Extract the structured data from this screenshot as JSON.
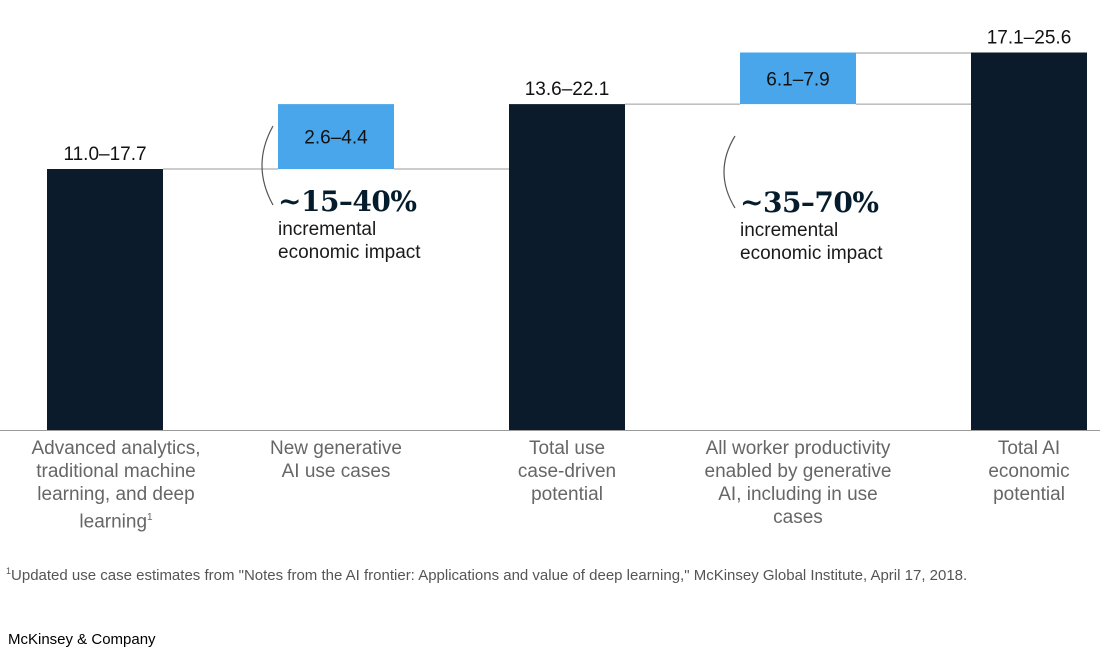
{
  "chart_data": {
    "type": "bar",
    "subtype": "waterfall",
    "colors": {
      "total": "#0b1b2b",
      "increment": "#4aa6ea"
    },
    "categories": [
      "Advanced analytics, traditional machine learning, and deep learning",
      "New generative AI use cases",
      "Total use case-driven potential",
      "All worker productivity enabled by generative AI, including in use cases",
      "Total AI economic potential"
    ],
    "bars": [
      {
        "kind": "total",
        "low": 11.0,
        "high": 17.7,
        "label": "11.0–17.7"
      },
      {
        "kind": "increment",
        "low": 2.6,
        "high": 4.4,
        "label": "2.6–4.4"
      },
      {
        "kind": "total",
        "low": 13.6,
        "high": 22.1,
        "label": "13.6–22.1"
      },
      {
        "kind": "increment",
        "low": 6.1,
        "high": 7.9,
        "label": "6.1–7.9"
      },
      {
        "kind": "total",
        "low": 17.1,
        "high": 25.6,
        "label": "17.1–25.6"
      }
    ]
  },
  "category_labels": [
    {
      "lines": [
        "Advanced analytics,",
        "traditional machine",
        "learning, and deep",
        "learning"
      ],
      "sup": "1"
    },
    {
      "lines": [
        "New generative",
        "AI use cases"
      ]
    },
    {
      "lines": [
        "Total use",
        "case-driven",
        "potential"
      ]
    },
    {
      "lines": [
        "All worker productivity",
        "enabled by generative",
        "AI, including in use",
        "cases"
      ]
    },
    {
      "lines": [
        "Total AI",
        "economic",
        "potential"
      ]
    }
  ],
  "annotations": [
    {
      "big": "~15–40%",
      "line1": "incremental",
      "line2": "economic impact"
    },
    {
      "big": "~35–70%",
      "line1": "incremental",
      "line2": "economic impact"
    }
  ],
  "footnote": {
    "marker": "1",
    "text": "Updated use case estimates from \"Notes from the AI frontier: Applications and value of deep learning,\" McKinsey Global Institute, April 17, 2018."
  },
  "brand": "McKinsey & Company"
}
